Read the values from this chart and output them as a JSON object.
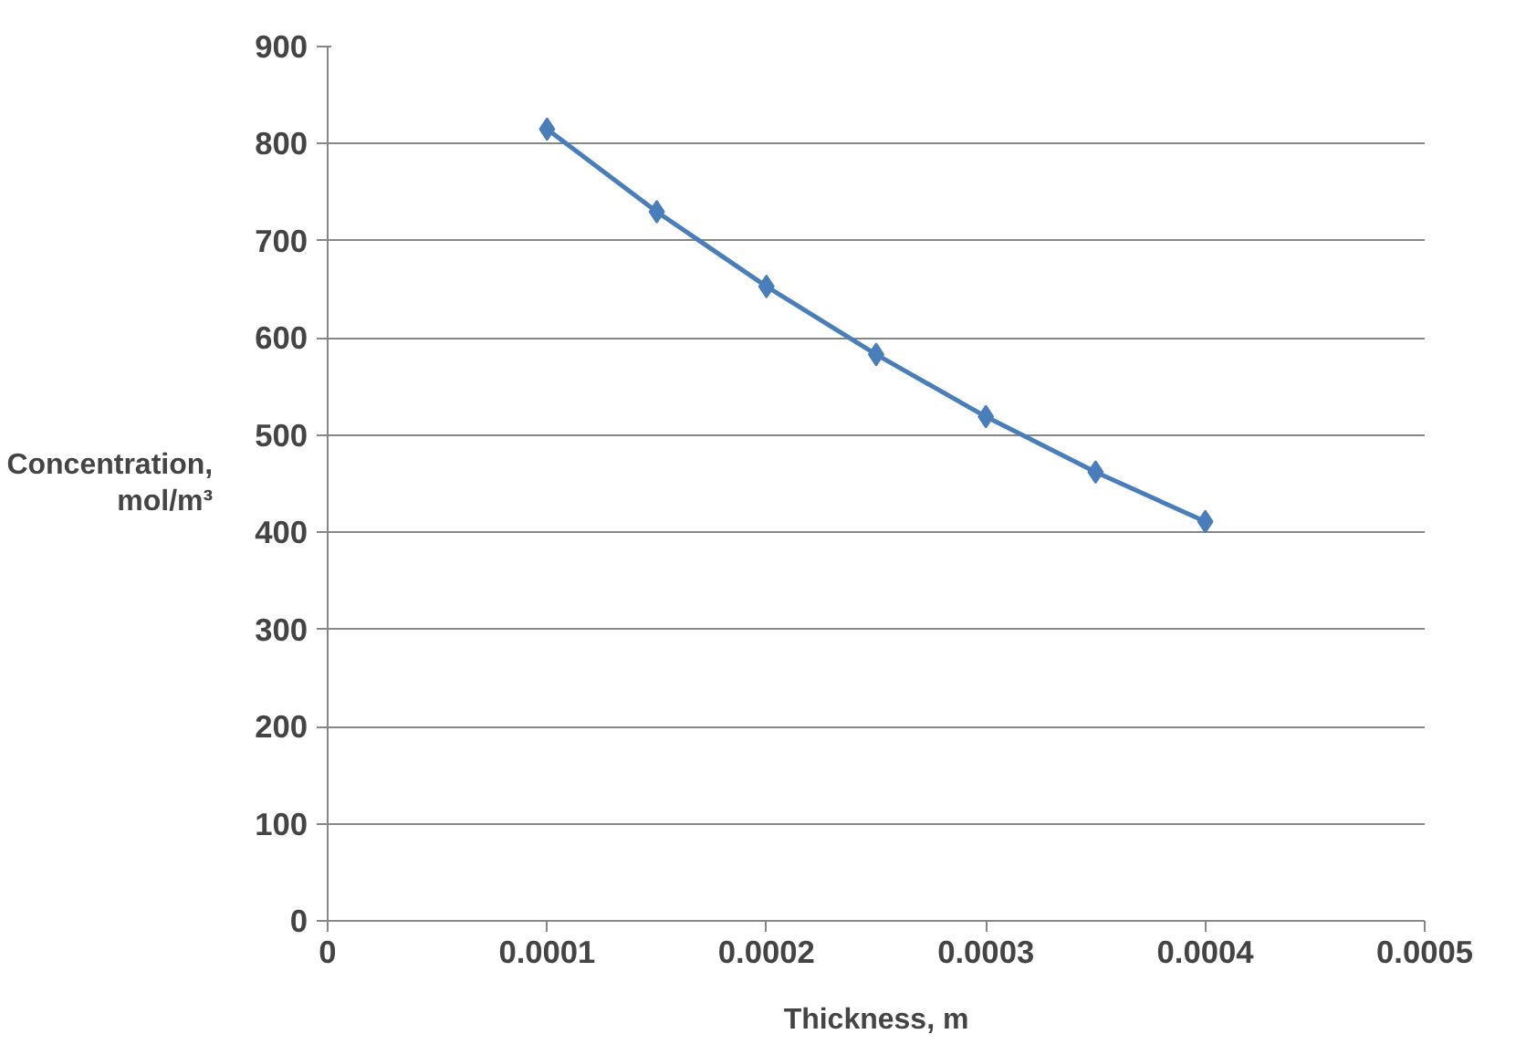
{
  "chart_data": {
    "type": "line",
    "xlabel": "Thickness, m",
    "ylabel": "Concentration, mol/m³",
    "x": [
      0.0001,
      0.00015,
      0.0002,
      0.00025,
      0.0003,
      0.00035,
      0.0004
    ],
    "series": [
      {
        "color": "#4a7ebb",
        "values": [
          815,
          730,
          653,
          583,
          519,
          462,
          411
        ]
      }
    ],
    "xlim": [
      0,
      0.0005
    ],
    "xticks": [
      0,
      {
        "value": 0.0001,
        "label": "0.0001"
      },
      {
        "value": 0.0002,
        "label": "0.0002"
      },
      {
        "value": 0.0003,
        "label": "0.0003"
      },
      {
        "value": 0.0004,
        "label": "0.0004"
      },
      {
        "value": 0.0005,
        "label": "0.0005"
      }
    ],
    "ylim": [
      0,
      900
    ],
    "yticks": [
      0,
      100,
      200,
      300,
      400,
      500,
      600,
      700,
      800,
      900
    ],
    "grid": "y",
    "marker": "diamond",
    "line_style": "solid"
  }
}
